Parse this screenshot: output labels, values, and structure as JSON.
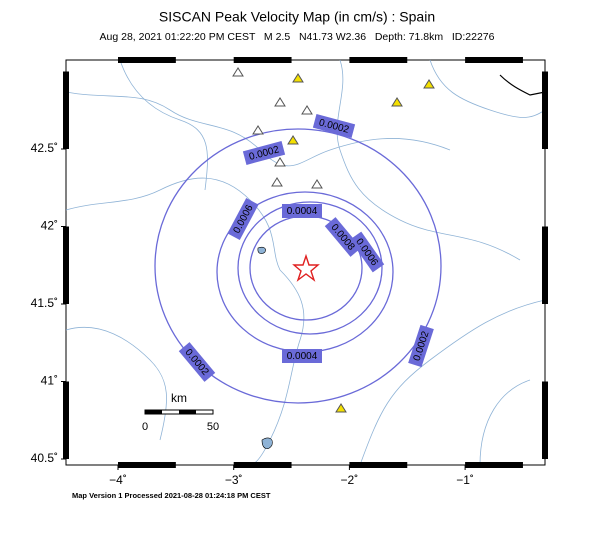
{
  "header": {
    "title": "SISCAN Peak Velocity Map (in cm/s) : Spain",
    "subtitle": "Aug 28, 2021 01:22:20 PM CEST   M 2.5   N41.73 W2.36   Depth: 71.8km   ID:22276"
  },
  "footer": "Map Version 1 Processed 2021-08-28 01:24:18 PM CEST",
  "map": {
    "lat_ticks": [
      {
        "value": 42.5,
        "label": "42.5˚"
      },
      {
        "value": 42,
        "label": "42˚"
      },
      {
        "value": 41.5,
        "label": "41.5˚"
      },
      {
        "value": 41,
        "label": "41˚"
      },
      {
        "value": 40.5,
        "label": "40.5˚"
      }
    ],
    "lon_ticks": [
      {
        "value": -4,
        "label": "−4˚"
      },
      {
        "value": -3,
        "label": "−3˚"
      },
      {
        "value": -2,
        "label": "−2˚"
      },
      {
        "value": -1,
        "label": "−1˚"
      }
    ],
    "contour_labels": [
      "0.0002",
      "0.0002",
      "0.0002",
      "0.0002",
      "0.0004",
      "0.0004",
      "0.0006",
      "0.0006",
      "0.0008"
    ],
    "scale_bar": {
      "unit": "km",
      "start": "0",
      "end": "50"
    }
  }
}
